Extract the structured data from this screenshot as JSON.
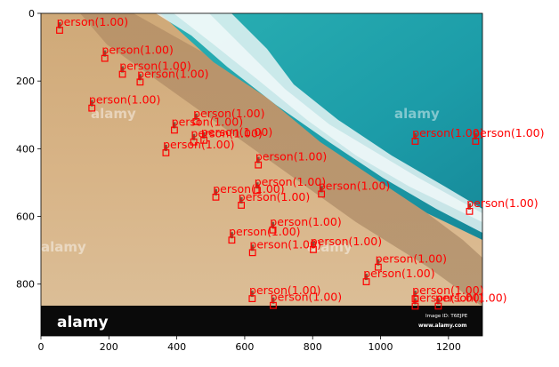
{
  "chart_data": {
    "type": "scatter",
    "title": "",
    "xlabel": "",
    "ylabel": "",
    "xlim": [
      0,
      1300
    ],
    "ylim": [
      953,
      0
    ],
    "x_ticks": [
      0,
      200,
      400,
      600,
      800,
      1000,
      1200
    ],
    "y_ticks": [
      0,
      200,
      400,
      600,
      800
    ],
    "grid": false,
    "colors": {
      "box": "#ff0000",
      "label": "#ff0000"
    },
    "image": {
      "footer_brand": "alamy",
      "footer_id": "Image ID: T6EJPE",
      "footer_url": "www.alamy.com",
      "watermark": "alamy"
    },
    "detections": [
      {
        "label": "person(1.00)",
        "x": 55,
        "y": 50
      },
      {
        "label": "person(1.00)",
        "x": 188,
        "y": 133
      },
      {
        "label": "person(1.00)",
        "x": 240,
        "y": 180
      },
      {
        "label": "person(1.00)",
        "x": 292,
        "y": 203
      },
      {
        "label": "person(1.00)",
        "x": 150,
        "y": 280
      },
      {
        "label": "person(1.00)",
        "x": 457,
        "y": 320
      },
      {
        "label": "person(1.00)",
        "x": 393,
        "y": 345
      },
      {
        "label": "person(1.00)",
        "x": 480,
        "y": 375
      },
      {
        "label": "person(1.00)",
        "x": 450,
        "y": 380
      },
      {
        "label": "person(1.00)",
        "x": 368,
        "y": 412
      },
      {
        "label": "person(1.00)",
        "x": 640,
        "y": 448
      },
      {
        "label": "person(1.00)",
        "x": 637,
        "y": 523
      },
      {
        "label": "person(1.00)",
        "x": 515,
        "y": 543
      },
      {
        "label": "person(1.00)",
        "x": 590,
        "y": 567
      },
      {
        "label": "person(1.00)",
        "x": 826,
        "y": 534
      },
      {
        "label": "person(1.00)",
        "x": 1102,
        "y": 378
      },
      {
        "label": "person(1.00)",
        "x": 1280,
        "y": 378
      },
      {
        "label": "person(1.00)",
        "x": 1262,
        "y": 585
      },
      {
        "label": "person(1.00)",
        "x": 683,
        "y": 640
      },
      {
        "label": "person(1.00)",
        "x": 562,
        "y": 670
      },
      {
        "label": "person(1.00)",
        "x": 623,
        "y": 707
      },
      {
        "label": "person(1.00)",
        "x": 802,
        "y": 698
      },
      {
        "label": "person(1.00)",
        "x": 993,
        "y": 750
      },
      {
        "label": "person(1.00)",
        "x": 958,
        "y": 793
      },
      {
        "label": "person(1.00)",
        "x": 622,
        "y": 843
      },
      {
        "label": "person(1.00)",
        "x": 684,
        "y": 863
      },
      {
        "label": "person(1.00)",
        "x": 1102,
        "y": 843
      },
      {
        "label": "person(1.00)",
        "x": 1102,
        "y": 865
      },
      {
        "label": "person(1.00)",
        "x": 1170,
        "y": 865
      }
    ]
  }
}
